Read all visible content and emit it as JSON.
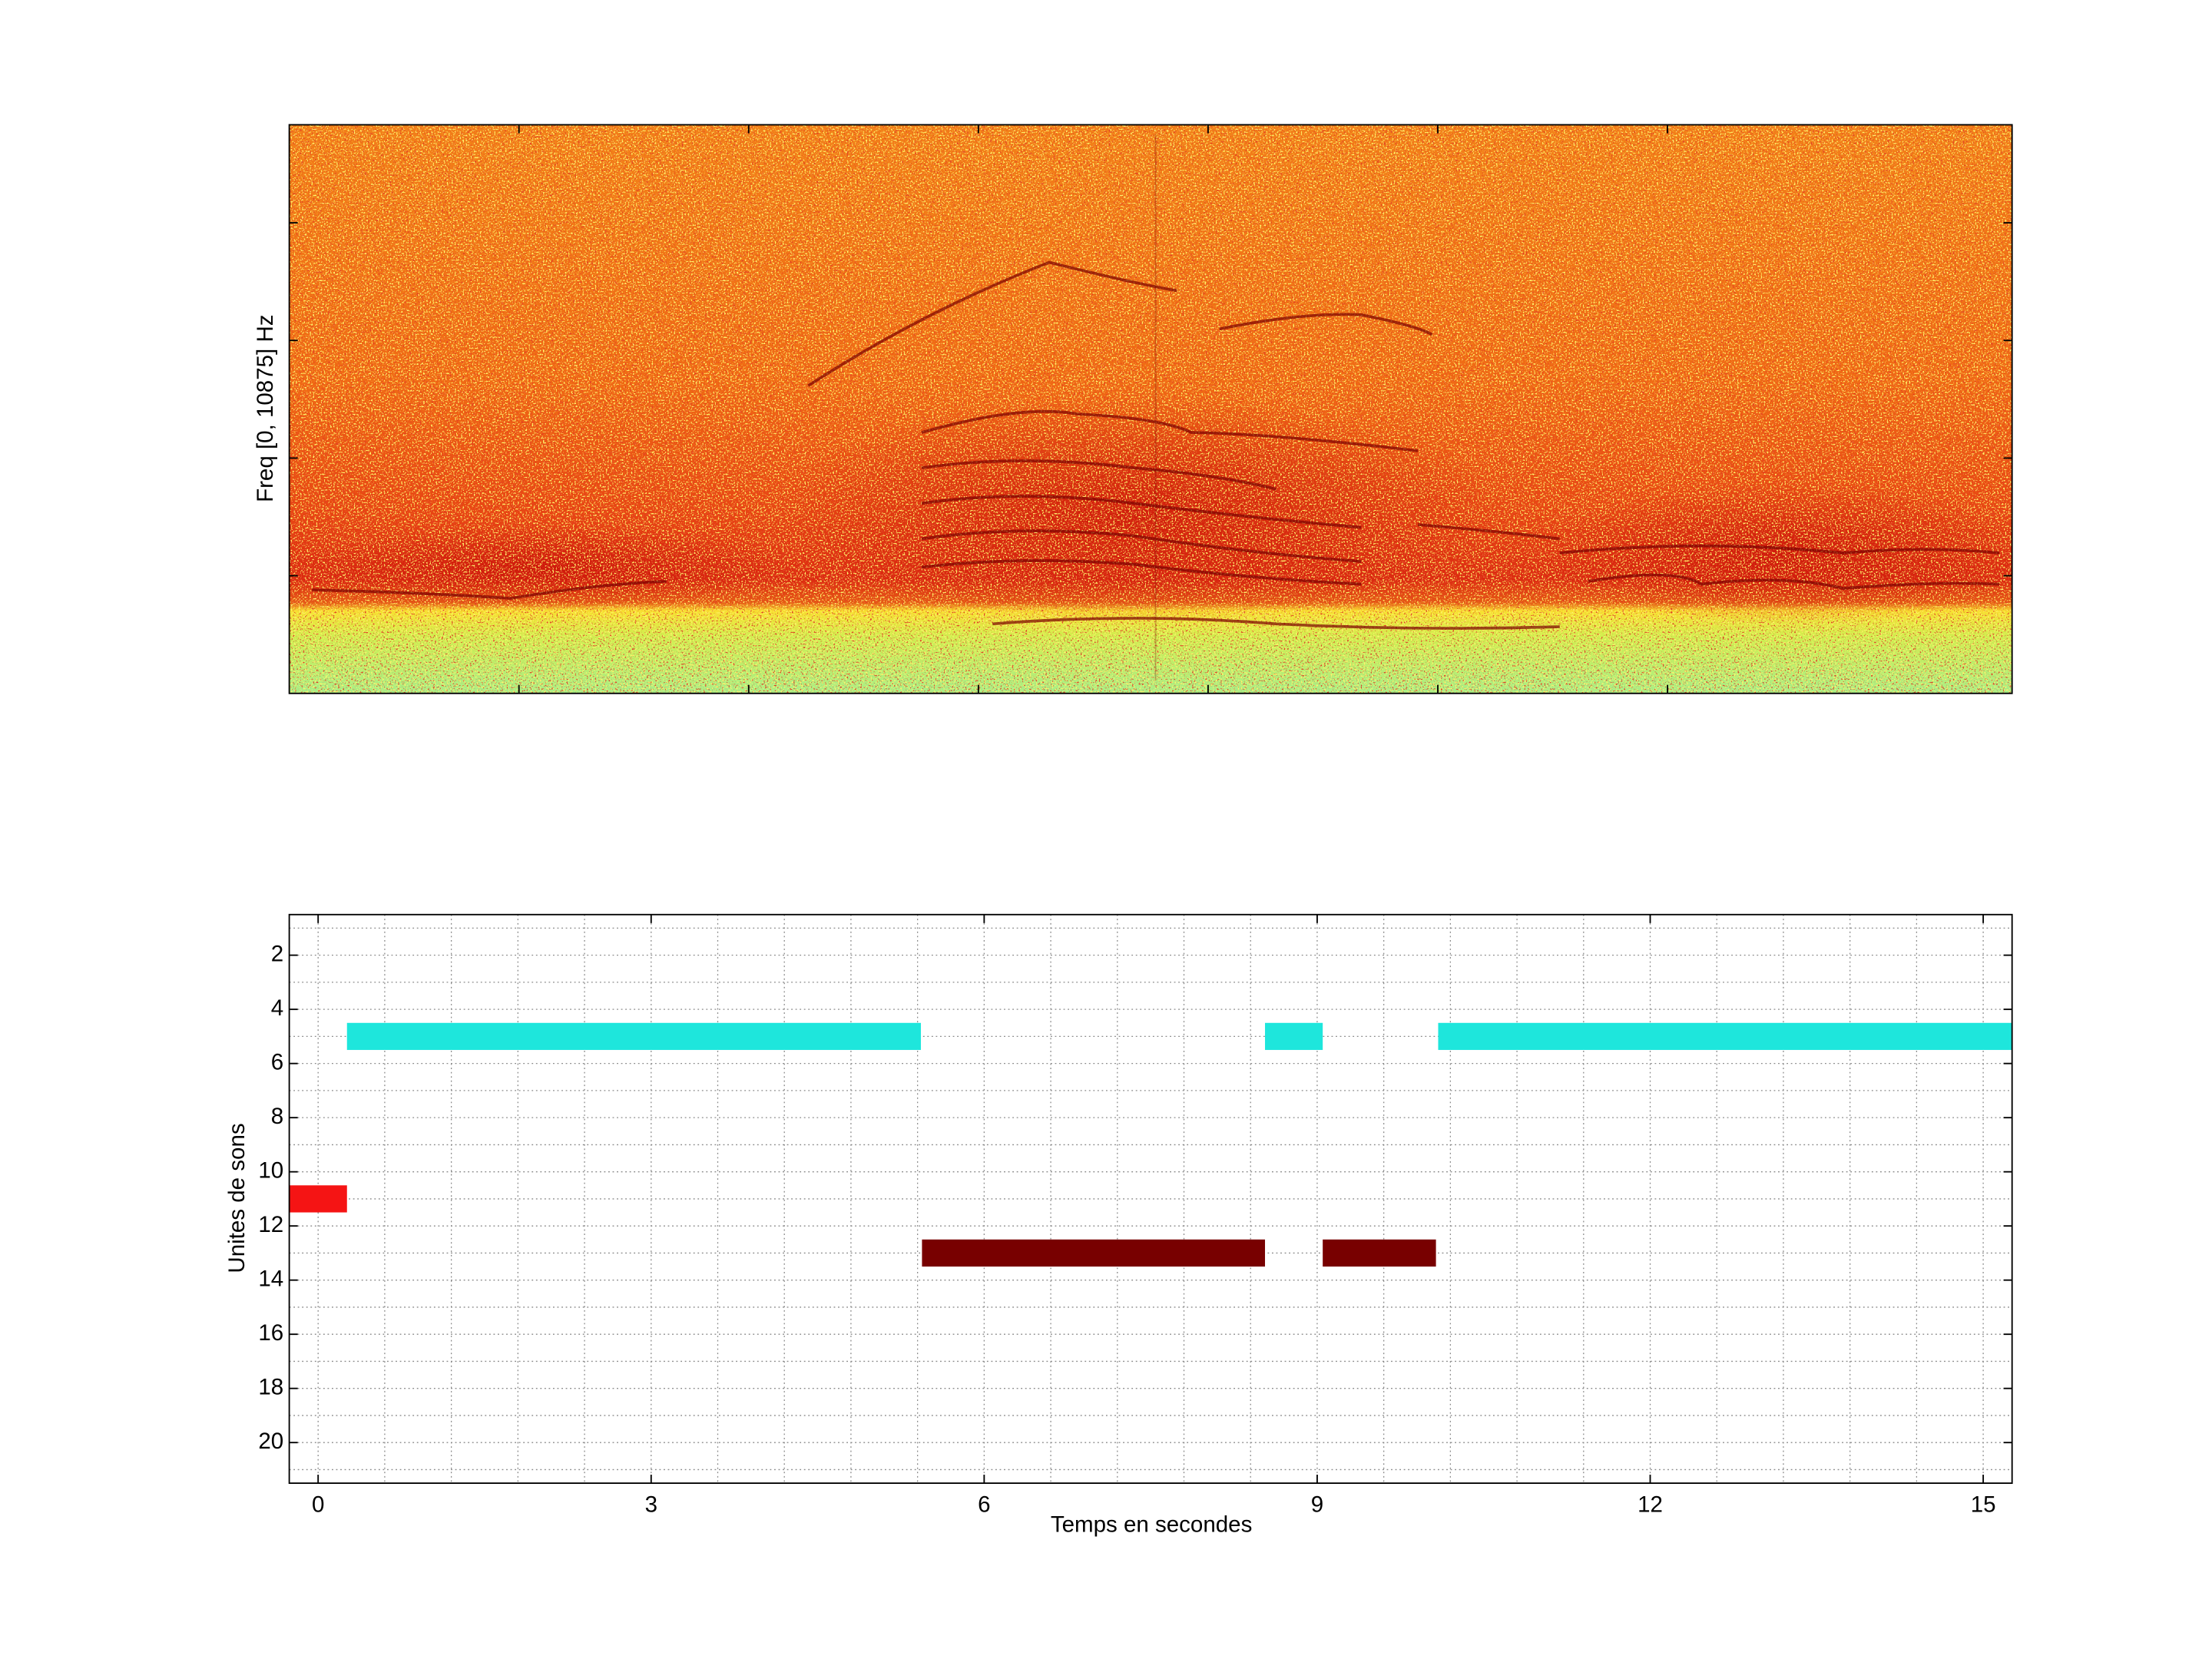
{
  "chart_data": [
    {
      "type": "spectrogram",
      "ylabel": "Freq [0, 10875] Hz",
      "xlim": [
        0,
        7.5
      ],
      "xticks": [
        1,
        2,
        3,
        4,
        5,
        6
      ],
      "ylim": [
        0,
        10875
      ],
      "yticks": [
        2250,
        4500,
        6750,
        9000
      ]
    },
    {
      "type": "segments",
      "xlabel": "Temps en secondes",
      "ylabel": "Unites de sons",
      "xlim": [
        -0.26,
        15.26
      ],
      "ylim": [
        0.5,
        21.5
      ],
      "y_reversed": true,
      "xticks": [
        0,
        3,
        6,
        9,
        12,
        15
      ],
      "yticks": [
        2,
        4,
        6,
        8,
        10,
        12,
        14,
        16,
        18,
        20
      ],
      "grid": true,
      "xminorticks": [
        0,
        0.6,
        1.2,
        1.8,
        2.4,
        3,
        3.6,
        4.2,
        4.8,
        5.4,
        6,
        6.6,
        7.2,
        7.8,
        8.4,
        9,
        9.6,
        10.2,
        10.8,
        11.4,
        12,
        12.6,
        13.2,
        13.8,
        14.4,
        15
      ],
      "yminorticks": [
        1,
        2,
        3,
        4,
        5,
        6,
        7,
        8,
        9,
        10,
        11,
        12,
        13,
        14,
        15,
        16,
        17,
        18,
        19,
        20,
        21
      ],
      "segments": [
        {
          "start": 0.26,
          "end": 5.43,
          "unit": 5,
          "color": "#1ee6dc"
        },
        {
          "start": 8.53,
          "end": 9.05,
          "unit": 5,
          "color": "#1ee6dc"
        },
        {
          "start": 10.09,
          "end": 15.26,
          "unit": 5,
          "color": "#1ee6dc"
        },
        {
          "start": -0.26,
          "end": 0.26,
          "unit": 11,
          "color": "#f51414"
        },
        {
          "start": 5.44,
          "end": 8.53,
          "unit": 13,
          "color": "#780000"
        },
        {
          "start": 9.05,
          "end": 10.07,
          "unit": 13,
          "color": "#780000"
        }
      ]
    }
  ]
}
